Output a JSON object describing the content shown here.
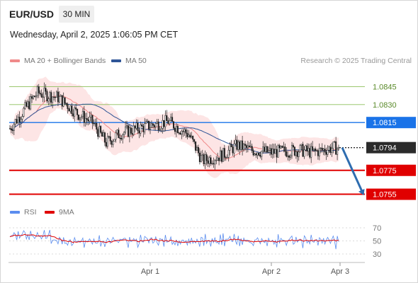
{
  "header": {
    "symbol": "EUR/USD",
    "timeframe": "30 MIN",
    "datetime": "Wednesday, April 2, 2025 1:06:05 PM CET"
  },
  "legend": {
    "ma20_label": "MA 20 + Bollinger Bands",
    "ma50_label": "MA 50",
    "rsi_label": "RSI",
    "rsi_ma_label": "9MA",
    "credit": "Research © 2025 Trading Central"
  },
  "colors": {
    "ma20": "#f08a8a",
    "ma50": "#2f5597",
    "bands_fill": "#fde0e0",
    "candle": "#222222",
    "level_green": "#8dbf5a",
    "level_blue": "#1a73e8",
    "level_red": "#e00000",
    "pivot": "#2b2b2b",
    "arrow": "#2e6db0",
    "rsi": "#5b8def",
    "rsi_ma": "#e00000"
  },
  "chart_data": [
    {
      "type": "candlestick",
      "title": "",
      "ylim": [
        1.075,
        1.0853
      ],
      "levels": [
        {
          "value": 1.0845,
          "label": "1.0845",
          "style": "resistance-green"
        },
        {
          "value": 1.083,
          "label": "1.0830",
          "style": "resistance-green"
        },
        {
          "value": 1.0815,
          "label": "1.0815",
          "style": "pivot-blue"
        },
        {
          "value": 1.0794,
          "label": "1.0794",
          "style": "last-price"
        },
        {
          "value": 1.0775,
          "label": "1.0775",
          "style": "support-red"
        },
        {
          "value": 1.0755,
          "label": "1.0755",
          "style": "support-red"
        }
      ],
      "forecast_arrow": {
        "from": 1.0794,
        "to": 1.0755
      },
      "x_ticks": [
        "Apr 1",
        "Apr 2",
        "Apr 3"
      ],
      "series": [
        {
          "name": "MA 20 + Bollinger Bands",
          "kind": "band"
        },
        {
          "name": "MA 50",
          "kind": "line"
        }
      ]
    },
    {
      "type": "line",
      "title": "",
      "ylim": [
        25,
        75
      ],
      "y_ticks": [
        70,
        50,
        30
      ],
      "series": [
        {
          "name": "RSI"
        },
        {
          "name": "9MA"
        }
      ]
    }
  ]
}
